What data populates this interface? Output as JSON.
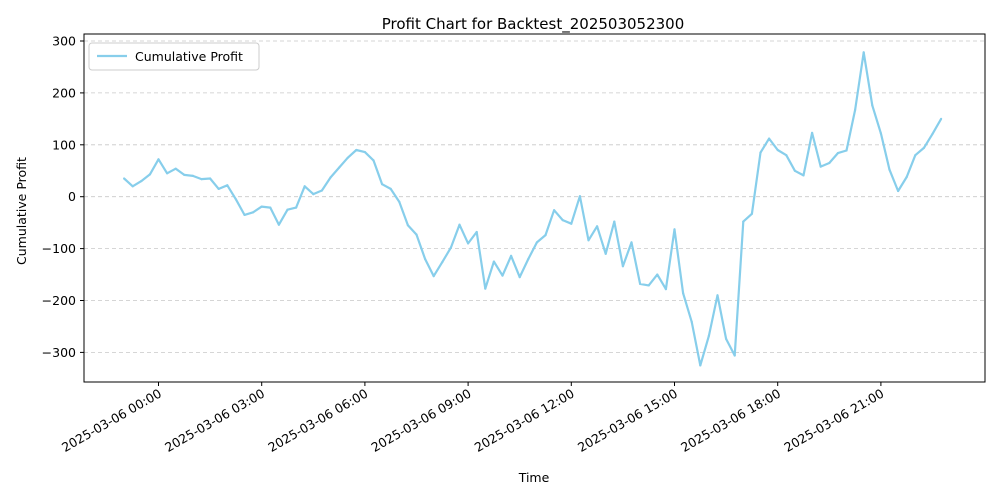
{
  "chart_data": {
    "type": "line",
    "title": "Profit Chart for Backtest_202503052300",
    "xlabel": "Time",
    "ylabel": "Cumulative Profit",
    "x_start": "2025-03-05 23:00",
    "x_interval_minutes": 15,
    "series": [
      {
        "name": "Cumulative Profit",
        "color": "#87ceeb",
        "values": [
          35,
          20,
          30,
          43,
          72,
          45,
          54,
          42,
          40,
          34,
          35,
          15,
          22,
          -5,
          -35,
          -30,
          -19,
          -21,
          -54,
          -25,
          -21,
          20,
          5,
          12,
          37,
          56,
          75,
          90,
          86,
          70,
          24,
          15,
          -10,
          -55,
          -73,
          -120,
          -153,
          -126,
          -98,
          -54,
          -90,
          -68,
          -177,
          -125,
          -152,
          -114,
          -155,
          -120,
          -88,
          -74,
          -26,
          -45,
          -52,
          1,
          -84,
          -57,
          -110,
          -48,
          -134,
          -88,
          -168,
          -171,
          -150,
          -178,
          -63,
          -186,
          -241,
          -325,
          -268,
          -190,
          -274,
          -306,
          -48,
          -33,
          85,
          112,
          90,
          80,
          50,
          41,
          123,
          58,
          65,
          84,
          89,
          167,
          278,
          176,
          122,
          52,
          11,
          38,
          80,
          94,
          121,
          150
        ]
      }
    ],
    "xticks": [
      "2025-03-06 00:00",
      "2025-03-06 03:00",
      "2025-03-06 06:00",
      "2025-03-06 09:00",
      "2025-03-06 12:00",
      "2025-03-06 15:00",
      "2025-03-06 18:00",
      "2025-03-06 21:00"
    ],
    "yticks": [
      300,
      200,
      100,
      0,
      -100,
      -200,
      -300
    ],
    "ylim": [
      -355,
      300
    ],
    "grid": "horizontal dashed",
    "legend_position": "top-left"
  }
}
